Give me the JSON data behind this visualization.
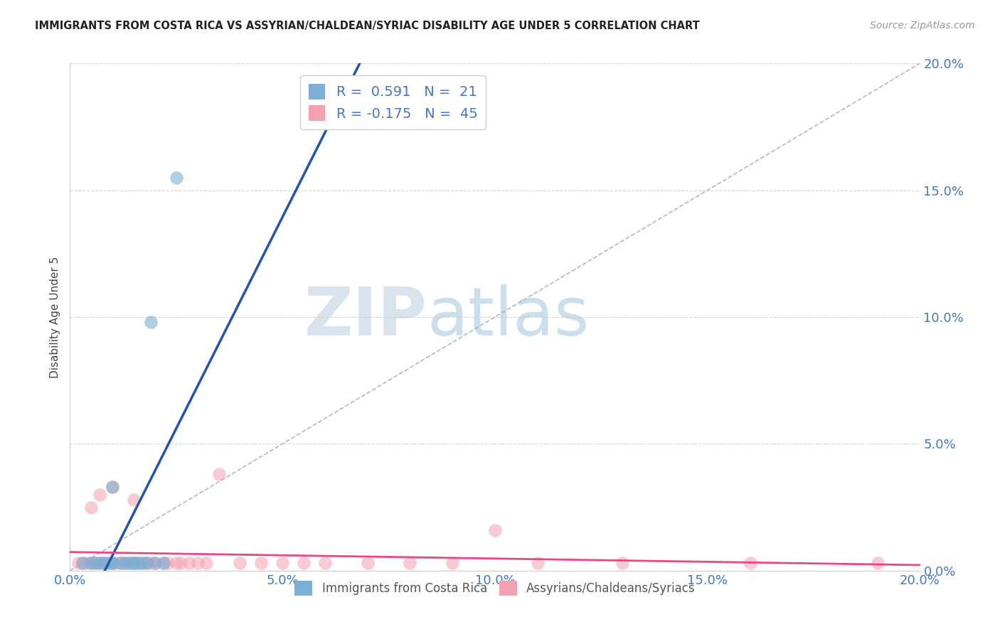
{
  "title": "IMMIGRANTS FROM COSTA RICA VS ASSYRIAN/CHALDEAN/SYRIAC DISABILITY AGE UNDER 5 CORRELATION CHART",
  "source": "Source: ZipAtlas.com",
  "ylabel": "Disability Age Under 5",
  "xlim": [
    0.0,
    0.2
  ],
  "ylim": [
    0.0,
    0.2
  ],
  "xticks": [
    0.0,
    0.05,
    0.1,
    0.15,
    0.2
  ],
  "yticks": [
    0.0,
    0.05,
    0.1,
    0.15,
    0.2
  ],
  "xtick_labels": [
    "0.0%",
    "5.0%",
    "10.0%",
    "15.0%",
    "20.0%"
  ],
  "ytick_labels": [
    "0.0%",
    "5.0%",
    "10.0%",
    "15.0%",
    "20.0%"
  ],
  "blue_R": 0.591,
  "blue_N": 21,
  "pink_R": -0.175,
  "pink_N": 45,
  "blue_color": "#7BAFD4",
  "pink_color": "#F4A0B0",
  "blue_line_color": "#2255AA",
  "pink_line_color": "#EE4488",
  "ref_line_color": "#AABBD0",
  "tick_color": "#4477CC",
  "legend_label_blue": "Immigrants from Costa Rica",
  "legend_label_pink": "Assyrians/Chaldeans/Syriacs",
  "blue_scatter_x": [
    0.003,
    0.005,
    0.006,
    0.007,
    0.008,
    0.009,
    0.01,
    0.01,
    0.01,
    0.012,
    0.013,
    0.014,
    0.015,
    0.015,
    0.016,
    0.017,
    0.018,
    0.019,
    0.02,
    0.022,
    0.025
  ],
  "blue_scatter_y": [
    0.003,
    0.003,
    0.003,
    0.003,
    0.003,
    0.003,
    0.003,
    0.033,
    0.003,
    0.003,
    0.003,
    0.003,
    0.003,
    0.003,
    0.003,
    0.003,
    0.003,
    0.098,
    0.003,
    0.003,
    0.155
  ],
  "pink_scatter_x": [
    0.002,
    0.003,
    0.004,
    0.005,
    0.005,
    0.006,
    0.007,
    0.007,
    0.008,
    0.008,
    0.009,
    0.01,
    0.01,
    0.011,
    0.012,
    0.013,
    0.014,
    0.015,
    0.015,
    0.016,
    0.017,
    0.018,
    0.019,
    0.02,
    0.022,
    0.023,
    0.025,
    0.026,
    0.028,
    0.03,
    0.032,
    0.035,
    0.04,
    0.045,
    0.05,
    0.055,
    0.06,
    0.07,
    0.08,
    0.09,
    0.1,
    0.11,
    0.13,
    0.16,
    0.19
  ],
  "pink_scatter_y": [
    0.003,
    0.003,
    0.003,
    0.003,
    0.025,
    0.003,
    0.003,
    0.03,
    0.003,
    0.003,
    0.003,
    0.003,
    0.033,
    0.003,
    0.003,
    0.003,
    0.003,
    0.003,
    0.028,
    0.003,
    0.003,
    0.003,
    0.003,
    0.003,
    0.003,
    0.003,
    0.003,
    0.003,
    0.003,
    0.003,
    0.003,
    0.038,
    0.003,
    0.003,
    0.003,
    0.003,
    0.003,
    0.003,
    0.003,
    0.003,
    0.016,
    0.003,
    0.003,
    0.003,
    0.003
  ],
  "watermark_zip": "ZIP",
  "watermark_atlas": "atlas",
  "background_color": "#FFFFFF",
  "grid_color": "#CCCCCC"
}
